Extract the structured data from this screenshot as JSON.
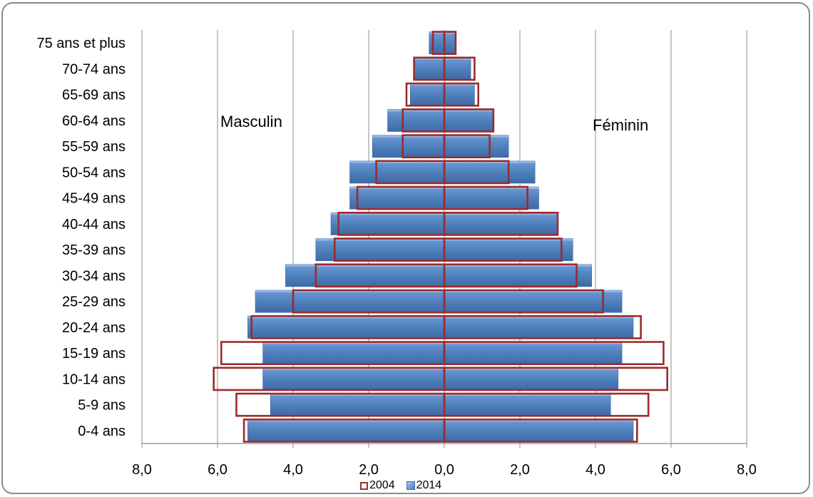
{
  "chart_data": {
    "type": "bar",
    "orientation": "horizontal",
    "subtype": "population-pyramid",
    "categories": [
      "0-4 ans",
      "5-9 ans",
      "10-14 ans",
      "15-19 ans",
      "20-24 ans",
      "25-29 ans",
      "30-34 ans",
      "35-39 ans",
      "40-44 ans",
      "45-49 ans",
      "50-54 ans",
      "55-59 ans",
      "60-64 ans",
      "65-69 ans",
      "70-74 ans",
      "75 ans et plus"
    ],
    "series": [
      {
        "name": "2014",
        "color": "#4f81bd",
        "style": "filled-3d",
        "masculin": [
          5.2,
          4.6,
          4.8,
          4.8,
          5.2,
          5.0,
          4.2,
          3.4,
          3.0,
          2.5,
          2.5,
          1.9,
          1.5,
          0.9,
          0.8,
          0.4
        ],
        "feminin": [
          5.0,
          4.4,
          4.6,
          4.7,
          5.0,
          4.7,
          3.9,
          3.4,
          3.0,
          2.5,
          2.4,
          1.7,
          1.3,
          0.8,
          0.7,
          0.3
        ]
      },
      {
        "name": "2004",
        "color": "#9b2c2c",
        "style": "outline",
        "masculin": [
          5.3,
          5.5,
          6.1,
          5.9,
          5.1,
          4.0,
          3.4,
          2.9,
          2.8,
          2.3,
          1.8,
          1.1,
          1.1,
          1.0,
          0.8,
          0.3
        ],
        "feminin": [
          5.1,
          5.4,
          5.9,
          5.8,
          5.2,
          4.2,
          3.5,
          3.1,
          3.0,
          2.2,
          1.7,
          1.2,
          1.3,
          0.9,
          0.8,
          0.3
        ]
      }
    ],
    "annotations": {
      "left": "Masculin",
      "right": "Féminin"
    },
    "x_ticks": [
      "8,0",
      "6,0",
      "4,0",
      "2,0",
      "0,0",
      "2,0",
      "4,0",
      "6,0",
      "8,0"
    ],
    "xlim": [
      -8,
      8
    ],
    "grid": "vertical",
    "legend_position": "bottom",
    "title": "",
    "xlabel": "",
    "ylabel": ""
  },
  "legend": {
    "item_2004": "2004",
    "item_2014": "2014"
  }
}
